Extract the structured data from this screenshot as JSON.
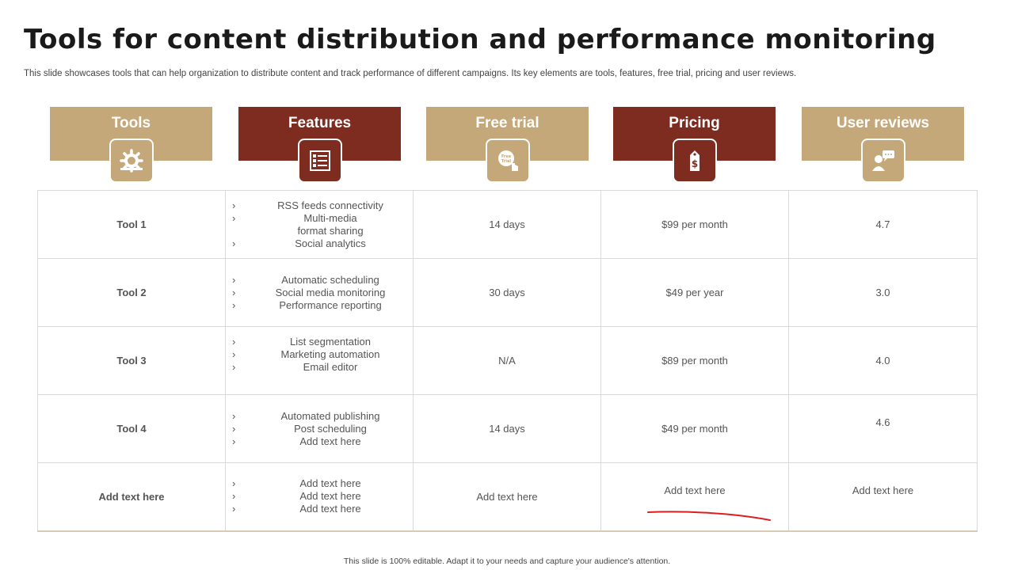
{
  "title": "Tools for content distribution and performance monitoring",
  "subtitle": "This slide showcases tools that can help organization to distribute content and track performance of different campaigns. Its key elements are tools, features, free trial, pricing and user reviews.",
  "headers": [
    {
      "label": "Tools",
      "icon": "tools-gear-icon",
      "color": "#c4a87a"
    },
    {
      "label": "Features",
      "icon": "feature-list-icon",
      "color": "#7e2b20"
    },
    {
      "label": "Free trial",
      "icon": "free-trial-hand-icon",
      "color": "#c4a87a"
    },
    {
      "label": "Pricing",
      "icon": "price-tag-icon",
      "color": "#7e2b20"
    },
    {
      "label": "User reviews",
      "icon": "user-review-icon",
      "color": "#c4a87a"
    }
  ],
  "rows": [
    {
      "tool": "Tool 1",
      "features": [
        "RSS feeds connectivity",
        "Multi-media",
        "format sharing",
        "Social analytics"
      ],
      "trial": "14 days",
      "pricing": "$99  per month",
      "reviews": "4.7"
    },
    {
      "tool": "Tool 2",
      "features": [
        "Automatic scheduling",
        "Social media monitoring",
        "Performance  reporting"
      ],
      "trial": "30 days",
      "pricing": "$49  per year",
      "reviews": "3.0"
    },
    {
      "tool": "Tool 3",
      "features": [
        "List segmentation",
        "Marketing automation",
        "Email editor"
      ],
      "trial": "N/A",
      "pricing": "$89  per month",
      "reviews": "4.0"
    },
    {
      "tool": "Tool 4",
      "features": [
        "Automated publishing",
        "Post scheduling",
        "Add text here"
      ],
      "trial": "14 days",
      "pricing": "$49  per month",
      "reviews": "4.6"
    },
    {
      "tool": "Add text here",
      "features": [
        "Add text here",
        "Add text here",
        "Add text here"
      ],
      "trial": "Add text here",
      "pricing": "Add text here",
      "reviews": "Add text here"
    }
  ],
  "footer": "This slide is 100% editable.  Adapt it to your needs and capture your audience's attention.",
  "colors": {
    "tan": "#c4a87a",
    "maroon": "#7e2b20",
    "annotation_red": "#d9201f"
  }
}
